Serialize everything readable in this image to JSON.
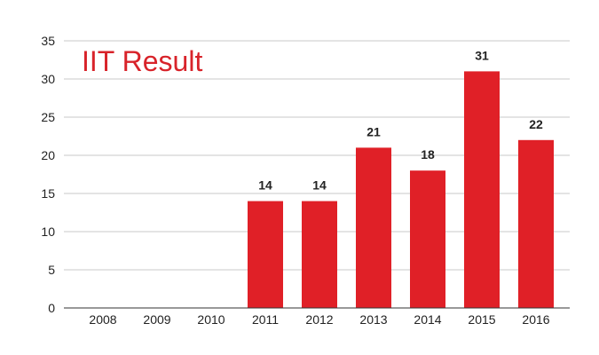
{
  "chart_data": {
    "type": "bar",
    "title": "IIT Result",
    "categories": [
      "2008",
      "2009",
      "2010",
      "2011",
      "2012",
      "2013",
      "2014",
      "2015",
      "2016"
    ],
    "values": [
      0,
      0,
      0,
      14,
      14,
      21,
      18,
      31,
      22
    ],
    "data_labels": [
      "",
      "",
      "",
      "14",
      "14",
      "21",
      "18",
      "31",
      "22"
    ],
    "ylim": [
      0,
      35
    ],
    "yticks": [
      "0",
      "5",
      "10",
      "15",
      "20",
      "25",
      "30",
      "35"
    ],
    "xlabel": "",
    "ylabel": "",
    "grid": true,
    "legend": "none",
    "colors": {
      "bar": "#e02027",
      "title": "#d8232a",
      "grid": "#c8c8c8",
      "axis": "#333333"
    }
  }
}
